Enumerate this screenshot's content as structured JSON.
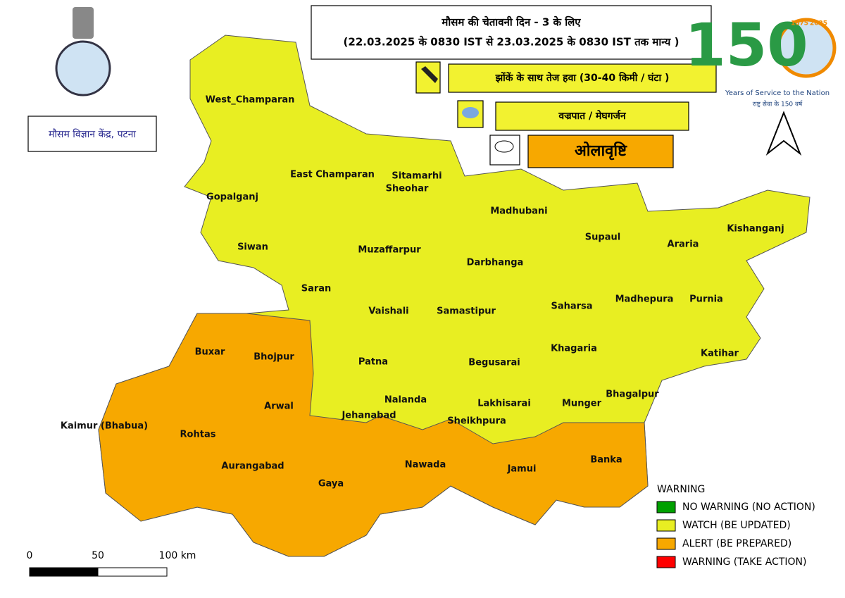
{
  "header": {
    "title": "मौसम की चेतावनी  दिन - 3 के लिए",
    "validity": "(22.03.2025 के 0830 IST से 23.03.2025 के 0830 IST तक मान्य )"
  },
  "office": "मौसम विज्ञान केंद्र, पटना",
  "logo": {
    "number": "150",
    "start": "1875",
    "end": "2025",
    "tagline": "Years of Service to the Nation",
    "tagline_hi": "राष्ट्र सेवा के 150 वर्ष"
  },
  "phenomena": [
    {
      "label": "झोंकें के साथ तेज हवा  (30-40 किमी / घंटा )",
      "color": "#f2f230"
    },
    {
      "label": "वज्रपात / मेघगर्जन",
      "color": "#f2f230"
    },
    {
      "label": "ओलावृष्टि",
      "color": "#f7a800"
    }
  ],
  "districts": [
    {
      "name": "West_Champaran"
    },
    {
      "name": "East Champaran"
    },
    {
      "name": "Sitamarhi"
    },
    {
      "name": "Sheohar"
    },
    {
      "name": "Gopalganj"
    },
    {
      "name": "Madhubani"
    },
    {
      "name": "Supaul"
    },
    {
      "name": "Araria"
    },
    {
      "name": "Kishanganj"
    },
    {
      "name": "Siwan"
    },
    {
      "name": "Muzaffarpur"
    },
    {
      "name": "Darbhanga"
    },
    {
      "name": "Saran"
    },
    {
      "name": "Madhepura"
    },
    {
      "name": "Purnia"
    },
    {
      "name": "Vaishali"
    },
    {
      "name": "Samastipur"
    },
    {
      "name": "Saharsa"
    },
    {
      "name": "Katihar"
    },
    {
      "name": "Khagaria"
    },
    {
      "name": "Buxar"
    },
    {
      "name": "Bhojpur"
    },
    {
      "name": "Patna"
    },
    {
      "name": "Begusarai"
    },
    {
      "name": "Bhagalpur"
    },
    {
      "name": "Nalanda"
    },
    {
      "name": "Lakhisarai"
    },
    {
      "name": "Munger"
    },
    {
      "name": "Arwal"
    },
    {
      "name": "Jehanabad"
    },
    {
      "name": "Sheikhpura"
    },
    {
      "name": "Kaimur (Bhabua)"
    },
    {
      "name": "Rohtas"
    },
    {
      "name": "Aurangabad"
    },
    {
      "name": "Gaya"
    },
    {
      "name": "Nawada"
    },
    {
      "name": "Jamui"
    },
    {
      "name": "Banka"
    }
  ],
  "legend": {
    "title": "WARNING",
    "items": [
      {
        "label": "NO WARNING (NO ACTION)",
        "color": "#00a000"
      },
      {
        "label": "WATCH (BE UPDATED)",
        "color": "#e8ee22"
      },
      {
        "label": "ALERT (BE PREPARED)",
        "color": "#f7a800"
      },
      {
        "label": "WARNING (TAKE ACTION)",
        "color": "#ff0000"
      }
    ]
  },
  "scale": {
    "labels": [
      "0",
      "50",
      "100 km"
    ]
  }
}
